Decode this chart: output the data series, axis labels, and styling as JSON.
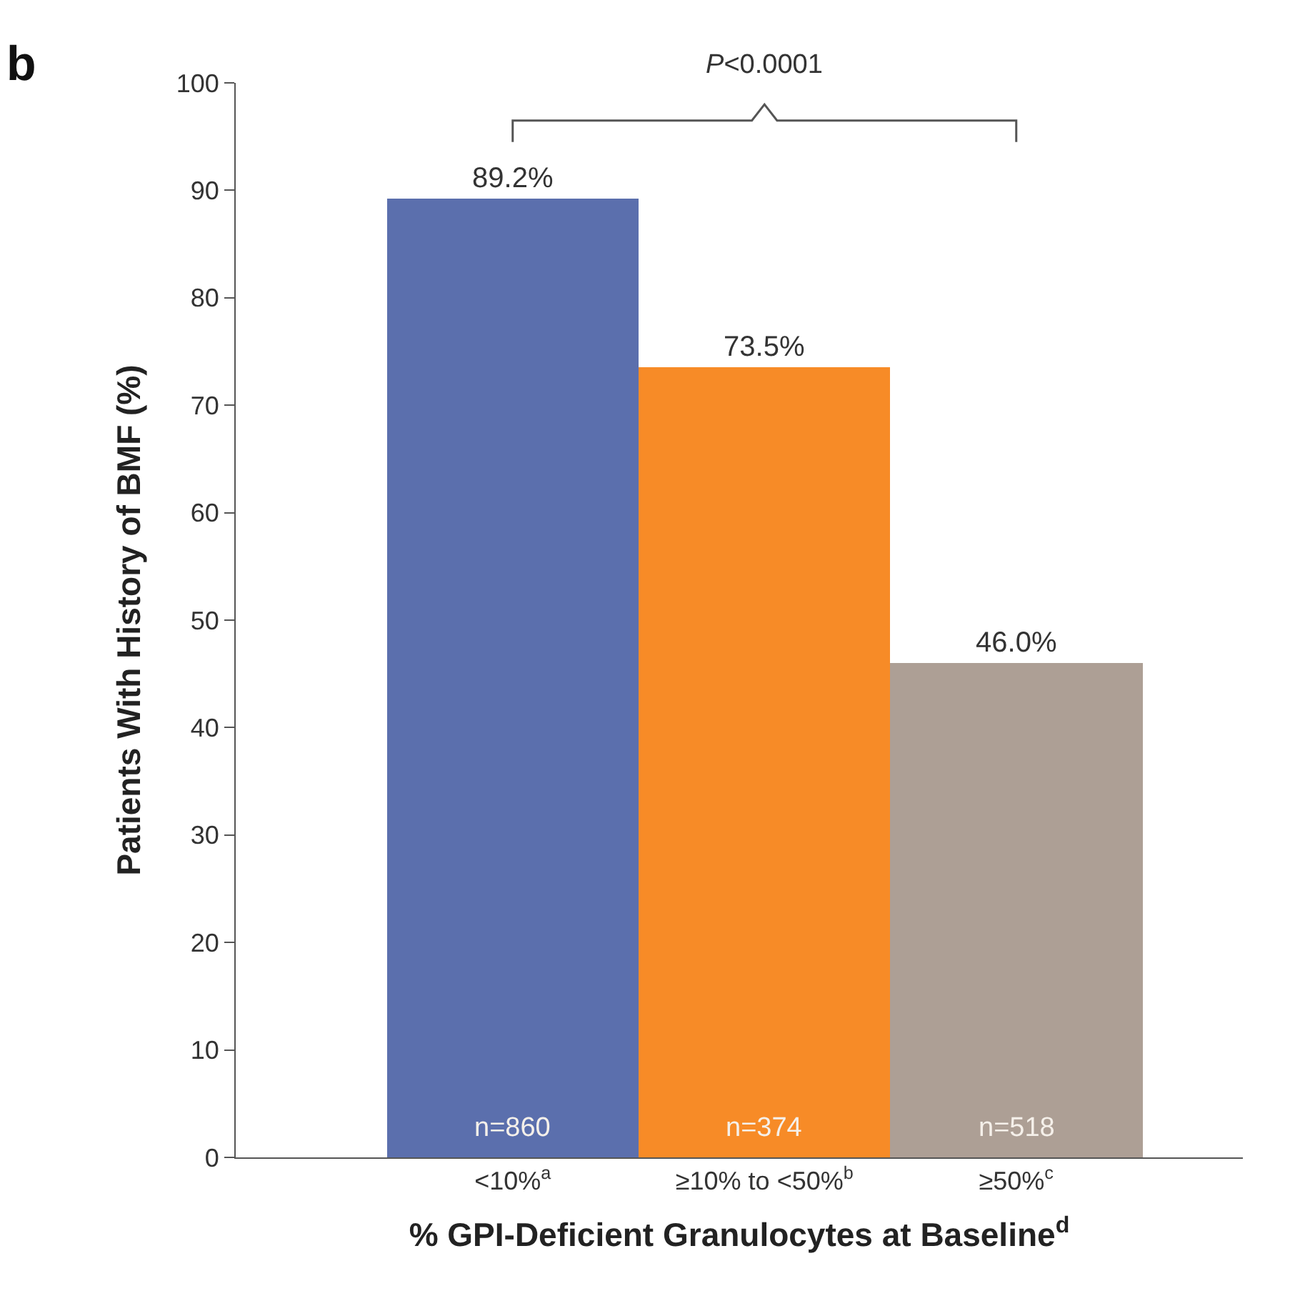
{
  "chart_data": {
    "type": "bar",
    "title": "b",
    "xlabel": "% GPI-Deficient Granulocytes at Baseline$^{d}$",
    "ylabel": "Patients With History of BMF (%)",
    "categories": [
      "<10%$^{a}$",
      "≥10% to <50%$^{b}$",
      "≥50%$^{c}$"
    ],
    "values": [
      89.2,
      73.5,
      46.0
    ],
    "colors": [
      "#5b6fad",
      "#f78b27",
      "#ad9f95"
    ],
    "value_labels": [
      "89.2%",
      "73.5%",
      "46.0%"
    ],
    "ylim": [
      0,
      100
    ],
    "yticks": [
      0,
      10,
      20,
      30,
      40,
      50,
      60,
      70,
      80,
      90,
      100
    ],
    "annotations": [
      "P<0.0001",
      "n=860",
      "n=374",
      "n=518"
    ]
  }
}
